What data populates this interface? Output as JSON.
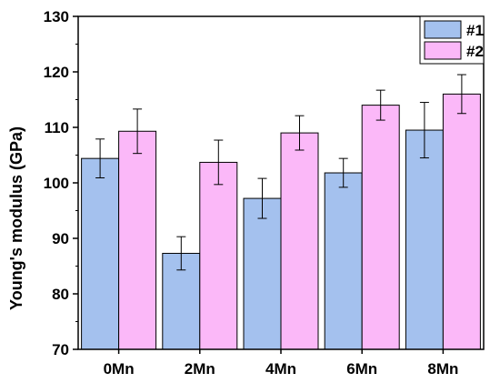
{
  "chart_data": {
    "type": "bar",
    "categories": [
      "0Mn",
      "2Mn",
      "4Mn",
      "6Mn",
      "8Mn"
    ],
    "series": [
      {
        "name": "#1",
        "color": "#a4c1ee",
        "values": [
          104.4,
          87.3,
          97.2,
          101.8,
          109.5
        ],
        "errors": [
          3.5,
          3.0,
          3.6,
          2.6,
          5.0
        ]
      },
      {
        "name": "#2",
        "color": "#fbb8f8",
        "values": [
          109.3,
          103.7,
          109.0,
          114.0,
          116.0
        ],
        "errors": [
          4.0,
          4.0,
          3.1,
          2.7,
          3.5
        ]
      }
    ],
    "ylabel": "Young's modulus (GPa)",
    "xlabel": "",
    "ylim": [
      70,
      130
    ],
    "yticks": [
      "70",
      "80",
      "90",
      "100",
      "110",
      "120",
      "130"
    ],
    "legend_position": "top-right",
    "grid": false
  }
}
